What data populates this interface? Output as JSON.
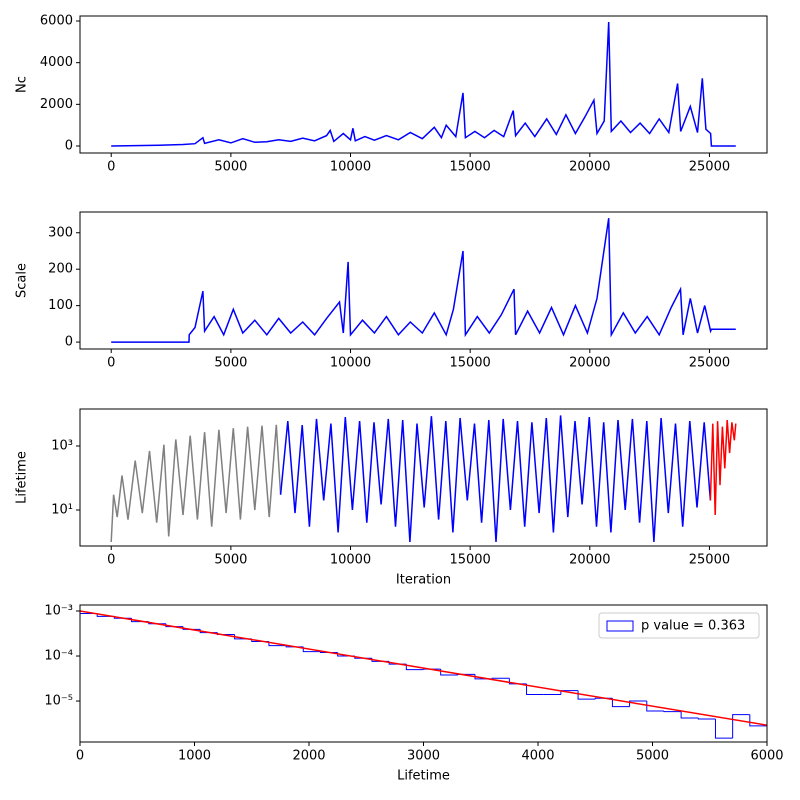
{
  "chart_data": [
    {
      "type": "line",
      "ylabel": "Nc",
      "xlim": [
        -1305,
        27405
      ],
      "ylim": [
        -336,
        6240
      ],
      "xticks": [
        0,
        5000,
        10000,
        15000,
        20000,
        25000
      ],
      "yticks": [
        0,
        2000,
        4000,
        6000
      ],
      "series": [
        {
          "color": "#0000ff",
          "x": [
            0,
            1000,
            2000,
            3000,
            3500,
            3830,
            3900,
            4500,
            5000,
            5500,
            6000,
            6500,
            7000,
            7500,
            8000,
            8500,
            9000,
            9150,
            9300,
            9700,
            10000,
            10100,
            10200,
            10600,
            11000,
            11500,
            12000,
            12500,
            13000,
            13500,
            13800,
            14000,
            14400,
            14700,
            14800,
            15200,
            15600,
            16000,
            16400,
            16800,
            16900,
            17300,
            17700,
            18200,
            18600,
            19000,
            19400,
            19800,
            20170,
            20300,
            20600,
            20790,
            20900,
            21300,
            21700,
            22100,
            22500,
            22900,
            23300,
            23670,
            23800,
            24200,
            24500,
            24700,
            24850,
            25050,
            25080,
            26100
          ],
          "values": [
            0,
            20,
            40,
            70,
            110,
            400,
            130,
            300,
            150,
            350,
            180,
            200,
            300,
            220,
            380,
            250,
            500,
            750,
            220,
            600,
            300,
            850,
            250,
            450,
            280,
            500,
            300,
            650,
            350,
            900,
            400,
            1000,
            450,
            2550,
            400,
            700,
            400,
            750,
            450,
            1700,
            500,
            1100,
            450,
            1300,
            550,
            1500,
            600,
            1400,
            2200,
            600,
            1200,
            5950,
            700,
            1200,
            650,
            1100,
            600,
            1300,
            650,
            3000,
            700,
            1900,
            650,
            3250,
            800,
            600,
            0,
            0
          ]
        }
      ]
    },
    {
      "type": "line",
      "ylabel": "Scale",
      "xlim": [
        -1305,
        27405
      ],
      "ylim": [
        -19,
        357
      ],
      "xticks": [
        0,
        5000,
        10000,
        15000,
        20000,
        25000
      ],
      "yticks": [
        0,
        100,
        200,
        300
      ],
      "series": [
        {
          "color": "#0000ff",
          "x": [
            0,
            3250,
            3260,
            3500,
            3830,
            3900,
            4300,
            4700,
            5100,
            5500,
            6000,
            6500,
            7000,
            7500,
            8000,
            8500,
            9000,
            9540,
            9700,
            9900,
            10000,
            10500,
            11000,
            11500,
            12000,
            12500,
            13000,
            13500,
            14000,
            14300,
            14700,
            14800,
            15300,
            15800,
            16300,
            16830,
            16900,
            17400,
            17900,
            18400,
            18900,
            19400,
            19900,
            20300,
            20790,
            20900,
            21400,
            21900,
            22400,
            22900,
            23400,
            23790,
            23900,
            24200,
            24500,
            24800,
            25050,
            25080,
            26100
          ],
          "values": [
            0,
            0,
            20,
            40,
            140,
            30,
            70,
            20,
            90,
            25,
            60,
            20,
            65,
            25,
            55,
            20,
            65,
            110,
            25,
            220,
            20,
            60,
            25,
            70,
            20,
            55,
            25,
            80,
            20,
            90,
            250,
            20,
            70,
            25,
            75,
            145,
            20,
            85,
            25,
            95,
            20,
            100,
            25,
            120,
            340,
            20,
            80,
            25,
            70,
            20,
            95,
            145,
            20,
            120,
            25,
            100,
            30,
            35,
            35
          ]
        }
      ]
    },
    {
      "type": "line",
      "ylabel": "Lifetime",
      "xlabel": "Iteration",
      "yscale": "log",
      "xlim": [
        -1305,
        27405
      ],
      "ylim": [
        0.75,
        14300
      ],
      "xticks": [
        0,
        5000,
        10000,
        15000,
        20000,
        25000
      ],
      "yticks": [
        {
          "value": 10,
          "label": "10¹"
        },
        {
          "value": 1000,
          "label": "10³"
        }
      ],
      "series": [
        {
          "color": "#808080",
          "x": [
            0,
            100,
            250,
            450,
            700,
            1000,
            1300,
            1600,
            1900,
            2200,
            2400,
            2700,
            3000,
            3300,
            3600,
            3900,
            4200,
            4500,
            4800,
            5100,
            5400,
            5700,
            6000,
            6300,
            6600,
            6900,
            7080
          ],
          "values": [
            1,
            30,
            6,
            120,
            5,
            350,
            8,
            700,
            4,
            1100,
            1.5,
            1600,
            7,
            2100,
            5,
            2700,
            3,
            3200,
            8,
            3600,
            5,
            4000,
            10,
            4300,
            6,
            4600,
            30
          ]
        },
        {
          "color": "#0000ff",
          "x": [
            7080,
            7380,
            7680,
            7980,
            8280,
            8580,
            8880,
            9180,
            9480,
            9780,
            10080,
            10380,
            10680,
            10980,
            11280,
            11580,
            11880,
            12180,
            12480,
            12780,
            13080,
            13380,
            13680,
            13980,
            14280,
            14580,
            14880,
            15180,
            15480,
            15780,
            16080,
            16380,
            16680,
            16980,
            17280,
            17580,
            17880,
            18180,
            18480,
            18780,
            19080,
            19380,
            19680,
            19980,
            20280,
            20580,
            20880,
            21180,
            21480,
            21780,
            22080,
            22380,
            22680,
            22980,
            23280,
            23580,
            23880,
            24180,
            24480,
            24780,
            25040
          ],
          "values": [
            30,
            6000,
            8,
            4500,
            3,
            7000,
            20,
            5000,
            2,
            8000,
            10,
            6000,
            4,
            5500,
            15,
            7000,
            3,
            6500,
            1,
            5000,
            12,
            8500,
            5,
            6000,
            2,
            7500,
            20,
            5000,
            4,
            6500,
            1,
            7000,
            10,
            6000,
            3,
            5500,
            8,
            7500,
            2,
            9000,
            6,
            6000,
            15,
            8000,
            3,
            5500,
            2,
            6500,
            10,
            7000,
            4,
            6000,
            1,
            7500,
            8,
            5000,
            3,
            6000,
            12,
            5500,
            20
          ]
        },
        {
          "color": "#ff0000",
          "x": [
            25040,
            25140,
            25240,
            25340,
            25440,
            25540,
            25640,
            25740,
            25840,
            25940,
            26040,
            26100
          ],
          "values": [
            20,
            5000,
            7,
            6000,
            60,
            4000,
            200,
            6500,
            600,
            5500,
            1500,
            5000
          ]
        }
      ]
    },
    {
      "type": "histogram",
      "xlabel": "Lifetime",
      "yscale": "log",
      "xlim": [
        0,
        6000
      ],
      "ylim": [
        1.23e-06,
        0.00136
      ],
      "xticks": [
        0,
        1000,
        2000,
        3000,
        4000,
        5000,
        6000
      ],
      "yticks": [
        {
          "value": 0.001,
          "label": "10⁻³"
        },
        {
          "value": 0.0001,
          "label": "10⁻⁴"
        },
        {
          "value": 1e-05,
          "label": "10⁻⁵"
        }
      ],
      "name": "p value = 0.363",
      "color": "#0000ff",
      "legend": "upper right",
      "bins": [
        0,
        150,
        300,
        450,
        600,
        750,
        900,
        1050,
        1200,
        1350,
        1500,
        1650,
        1800,
        1950,
        2100,
        2250,
        2400,
        2550,
        2700,
        2850,
        3000,
        3150,
        3300,
        3450,
        3600,
        3750,
        3900,
        4050,
        4200,
        4350,
        4500,
        4650,
        4800,
        4950,
        5100,
        5250,
        5400,
        5550,
        5700,
        5850,
        6000
      ],
      "values": [
        0.00088,
        0.00076,
        0.00069,
        0.00058,
        0.00052,
        0.00045,
        0.00039,
        0.00033,
        0.0003,
        0.00024,
        0.00021,
        0.00017,
        0.00016,
        0.000125,
        0.00012,
        0.0001,
        8.9e-05,
        7.6e-05,
        6.6e-05,
        5e-05,
        5.1e-05,
        3.8e-05,
        3.9e-05,
        3.1e-05,
        3.2e-05,
        2.4e-05,
        1.4e-05,
        1.4e-05,
        1.7e-05,
        1.1e-05,
        1.15e-05,
        7.5e-06,
        1e-05,
        6e-06,
        5.8e-06,
        4.2e-06,
        4e-06,
        1.5e-06,
        5e-06,
        2.8e-06
      ],
      "fit": {
        "color": "#ff0000",
        "x": [
          0,
          6000
        ],
        "values": [
          0.001,
          2.9e-06
        ]
      }
    }
  ]
}
